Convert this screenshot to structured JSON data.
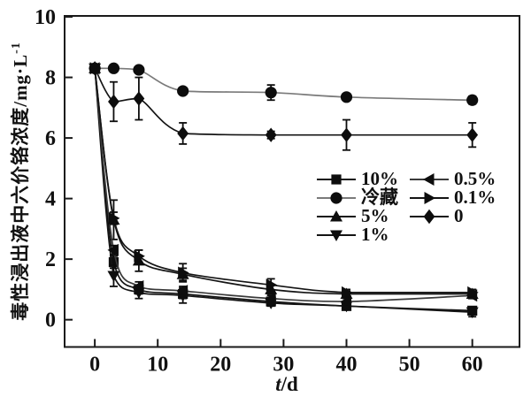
{
  "labels": {
    "y_main": "毒性浸出液中六价铬浓度/mg·L",
    "y_sup": "-1",
    "x_italic": "t",
    "x_rest": "/d"
  },
  "colors": {
    "axis": "#1a1a1a",
    "marker": "#0d0d0d",
    "text": "#111111",
    "background": "#ffffff"
  },
  "legend": {
    "column_split": 4
  },
  "chart_data": {
    "type": "line",
    "title": "",
    "xlabel": "t/d",
    "ylabel": "毒性浸出液中六价铬浓度/mg·L⁻¹",
    "x": [
      0,
      3,
      7,
      14,
      28,
      40,
      60
    ],
    "xticks": [
      0,
      10,
      20,
      30,
      40,
      50,
      60
    ],
    "yticks": [
      0,
      2,
      4,
      6,
      8,
      10
    ],
    "xlim": [
      -4.8,
      67.5
    ],
    "ylim": [
      -0.9,
      10.03
    ],
    "grid": false,
    "legend_position": "center-right",
    "series": [
      {
        "name": "10%",
        "marker": "square",
        "line_color": "#141414",
        "values": [
          8.3,
          1.9,
          1.0,
          0.85,
          0.6,
          0.45,
          0.3
        ],
        "errors": [
          0,
          0.2,
          0.15,
          0.15,
          0.1,
          0.1,
          0.1
        ]
      },
      {
        "name": "冷藏",
        "marker": "circle",
        "line_color": "#7a7a7a",
        "values": [
          8.3,
          8.3,
          8.25,
          7.55,
          7.5,
          7.35,
          7.25
        ],
        "errors": [
          0,
          0,
          0,
          0,
          0.25,
          0,
          0.13
        ]
      },
      {
        "name": "5%",
        "marker": "triangle-up",
        "line_color": "#141414",
        "values": [
          8.3,
          3.3,
          1.95,
          1.5,
          1.0,
          0.85,
          0.85
        ],
        "errors": [
          0,
          0.65,
          0.35,
          0.2,
          0.15,
          0.1,
          0.15
        ]
      },
      {
        "name": "1%",
        "marker": "triangle-down",
        "line_color": "#141414",
        "values": [
          8.3,
          1.45,
          0.9,
          0.8,
          0.55,
          0.45,
          0.25
        ],
        "errors": [
          0,
          0.35,
          0.2,
          0.25,
          0.1,
          0.1,
          0.15
        ]
      },
      {
        "name": "0.5%",
        "marker": "triangle-left",
        "line_color": "#3a3a3a",
        "values": [
          8.3,
          2.3,
          1.1,
          0.95,
          0.7,
          0.6,
          0.8
        ],
        "errors": [
          0,
          0.15,
          0.15,
          0.15,
          0.1,
          0.1,
          0.1
        ]
      },
      {
        "name": "0.1%",
        "marker": "triangle-right",
        "line_color": "#141414",
        "values": [
          8.3,
          3.35,
          2.1,
          1.55,
          1.15,
          0.9,
          0.9
        ],
        "errors": [
          0,
          0.2,
          0.2,
          0.3,
          0.2,
          0.1,
          0.1
        ]
      },
      {
        "name": "0",
        "marker": "diamond",
        "line_color": "#141414",
        "values": [
          8.3,
          7.2,
          7.3,
          6.15,
          6.1,
          6.1,
          6.1
        ],
        "errors": [
          0,
          0.65,
          0.7,
          0.35,
          0.12,
          0.5,
          0.4
        ]
      }
    ]
  }
}
